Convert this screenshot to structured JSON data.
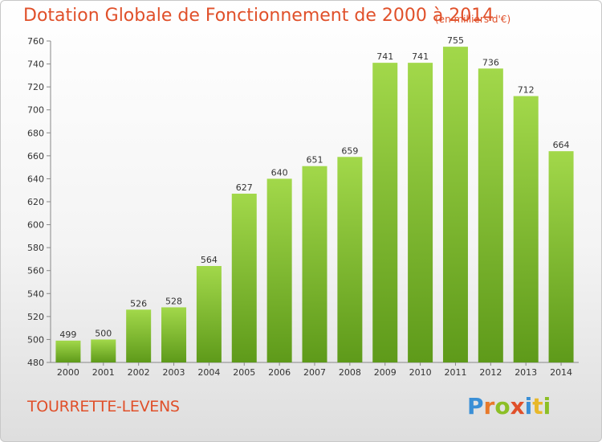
{
  "header": {
    "title": "Dotation Globale de Fonctionnement de 2000 à 2014",
    "subtitle": "(en milliers d'€)"
  },
  "footer": {
    "commune": "TOURRETTE-LEVENS",
    "brand_letters": [
      {
        "char": "P",
        "color": "#3a8fd6"
      },
      {
        "char": "r",
        "color": "#e8792a"
      },
      {
        "char": "o",
        "color": "#8cbf26"
      },
      {
        "char": "x",
        "color": "#e0502a"
      },
      {
        "char": "i",
        "color": "#3a8fd6"
      },
      {
        "char": "t",
        "color": "#e8b82a"
      },
      {
        "char": "i",
        "color": "#8cbf26"
      }
    ]
  },
  "colors": {
    "accent": "#e0502a",
    "bar_top": "#a2d84a",
    "bar_bottom": "#5e9a1a"
  },
  "chart_data": {
    "type": "bar",
    "categories": [
      "2000",
      "2001",
      "2002",
      "2003",
      "2004",
      "2005",
      "2006",
      "2007",
      "2008",
      "2009",
      "2010",
      "2011",
      "2012",
      "2013",
      "2014"
    ],
    "values": [
      499,
      500,
      526,
      528,
      564,
      627,
      640,
      651,
      659,
      741,
      741,
      755,
      736,
      712,
      664
    ],
    "title": "Dotation Globale de Fonctionnement de 2000 à 2014",
    "subtitle": "(en milliers d'€)",
    "ylim": [
      480,
      760
    ],
    "yticks": [
      480,
      500,
      520,
      540,
      560,
      580,
      600,
      620,
      640,
      660,
      680,
      700,
      720,
      740,
      760
    ],
    "grid": false
  }
}
